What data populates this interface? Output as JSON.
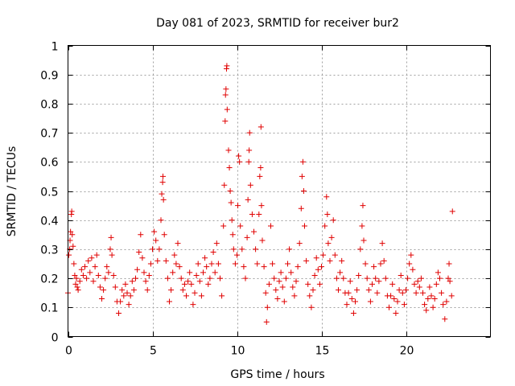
{
  "chart_data": {
    "type": "scatter",
    "title": "Day 081 of 2023, SRMTID for receiver bur2",
    "xlabel": "GPS time / hours",
    "ylabel": "SRMTID / TECUs",
    "xlim": [
      0,
      25
    ],
    "ylim": [
      0,
      1
    ],
    "x_ticks": [
      "0",
      "5",
      "10",
      "15",
      "20"
    ],
    "x_tick_values": [
      0,
      5,
      10,
      15,
      20
    ],
    "y_ticks": [
      "0",
      "0.1",
      "0.2",
      "0.3",
      "0.4",
      "0.5",
      "0.6",
      "0.7",
      "0.8",
      "0.9",
      "1"
    ],
    "y_tick_values": [
      0,
      0.1,
      0.2,
      0.3,
      0.4,
      0.5,
      0.6,
      0.7,
      0.8,
      0.9,
      1
    ],
    "grid": true,
    "marker": "+",
    "color": "#e00000",
    "series": [
      {
        "name": "SRMTID",
        "points": [
          [
            0.0,
            0.15
          ],
          [
            0.05,
            0.28
          ],
          [
            0.1,
            0.3
          ],
          [
            0.12,
            0.33
          ],
          [
            0.15,
            0.36
          ],
          [
            0.2,
            0.42
          ],
          [
            0.22,
            0.43
          ],
          [
            0.25,
            0.35
          ],
          [
            0.3,
            0.31
          ],
          [
            0.35,
            0.25
          ],
          [
            0.4,
            0.21
          ],
          [
            0.45,
            0.18
          ],
          [
            0.5,
            0.2
          ],
          [
            0.55,
            0.17
          ],
          [
            0.6,
            0.16
          ],
          [
            0.7,
            0.19
          ],
          [
            0.8,
            0.23
          ],
          [
            0.9,
            0.21
          ],
          [
            1.0,
            0.24
          ],
          [
            1.1,
            0.2
          ],
          [
            1.2,
            0.26
          ],
          [
            1.3,
            0.22
          ],
          [
            1.4,
            0.27
          ],
          [
            1.5,
            0.19
          ],
          [
            1.6,
            0.24
          ],
          [
            1.7,
            0.28
          ],
          [
            1.8,
            0.21
          ],
          [
            1.9,
            0.17
          ],
          [
            2.0,
            0.13
          ],
          [
            2.1,
            0.16
          ],
          [
            2.2,
            0.2
          ],
          [
            2.3,
            0.24
          ],
          [
            2.4,
            0.22
          ],
          [
            2.5,
            0.3
          ],
          [
            2.55,
            0.34
          ],
          [
            2.6,
            0.28
          ],
          [
            2.7,
            0.21
          ],
          [
            2.8,
            0.17
          ],
          [
            2.9,
            0.12
          ],
          [
            3.0,
            0.08
          ],
          [
            3.1,
            0.12
          ],
          [
            3.2,
            0.16
          ],
          [
            3.3,
            0.14
          ],
          [
            3.4,
            0.18
          ],
          [
            3.5,
            0.15
          ],
          [
            3.6,
            0.11
          ],
          [
            3.7,
            0.14
          ],
          [
            3.8,
            0.19
          ],
          [
            3.9,
            0.16
          ],
          [
            4.0,
            0.2
          ],
          [
            4.1,
            0.23
          ],
          [
            4.2,
            0.29
          ],
          [
            4.3,
            0.35
          ],
          [
            4.4,
            0.27
          ],
          [
            4.5,
            0.22
          ],
          [
            4.6,
            0.19
          ],
          [
            4.7,
            0.16
          ],
          [
            4.8,
            0.21
          ],
          [
            4.9,
            0.25
          ],
          [
            5.0,
            0.3
          ],
          [
            5.1,
            0.36
          ],
          [
            5.2,
            0.33
          ],
          [
            5.3,
            0.26
          ],
          [
            5.4,
            0.3
          ],
          [
            5.5,
            0.4
          ],
          [
            5.55,
            0.49
          ],
          [
            5.6,
            0.53
          ],
          [
            5.62,
            0.55
          ],
          [
            5.65,
            0.47
          ],
          [
            5.7,
            0.35
          ],
          [
            5.8,
            0.26
          ],
          [
            5.9,
            0.2
          ],
          [
            6.0,
            0.12
          ],
          [
            6.1,
            0.16
          ],
          [
            6.2,
            0.22
          ],
          [
            6.3,
            0.28
          ],
          [
            6.4,
            0.25
          ],
          [
            6.5,
            0.32
          ],
          [
            6.6,
            0.24
          ],
          [
            6.7,
            0.2
          ],
          [
            6.8,
            0.16
          ],
          [
            6.9,
            0.18
          ],
          [
            7.0,
            0.14
          ],
          [
            7.1,
            0.19
          ],
          [
            7.2,
            0.22
          ],
          [
            7.3,
            0.18
          ],
          [
            7.4,
            0.11
          ],
          [
            7.5,
            0.15
          ],
          [
            7.6,
            0.21
          ],
          [
            7.7,
            0.25
          ],
          [
            7.8,
            0.19
          ],
          [
            7.9,
            0.14
          ],
          [
            8.0,
            0.22
          ],
          [
            8.1,
            0.27
          ],
          [
            8.2,
            0.24
          ],
          [
            8.3,
            0.18
          ],
          [
            8.4,
            0.2
          ],
          [
            8.5,
            0.25
          ],
          [
            8.6,
            0.29
          ],
          [
            8.7,
            0.22
          ],
          [
            8.8,
            0.32
          ],
          [
            8.9,
            0.25
          ],
          [
            9.0,
            0.2
          ],
          [
            9.1,
            0.14
          ],
          [
            9.2,
            0.38
          ],
          [
            9.25,
            0.52
          ],
          [
            9.3,
            0.74
          ],
          [
            9.32,
            0.83
          ],
          [
            9.35,
            0.85
          ],
          [
            9.38,
            0.92
          ],
          [
            9.4,
            0.93
          ],
          [
            9.42,
            0.78
          ],
          [
            9.5,
            0.64
          ],
          [
            9.55,
            0.58
          ],
          [
            9.6,
            0.5
          ],
          [
            9.65,
            0.46
          ],
          [
            9.7,
            0.4
          ],
          [
            9.75,
            0.35
          ],
          [
            9.8,
            0.3
          ],
          [
            9.9,
            0.25
          ],
          [
            10.0,
            0.28
          ],
          [
            10.05,
            0.45
          ],
          [
            10.1,
            0.62
          ],
          [
            10.15,
            0.6
          ],
          [
            10.2,
            0.38
          ],
          [
            10.3,
            0.3
          ],
          [
            10.4,
            0.24
          ],
          [
            10.5,
            0.2
          ],
          [
            10.6,
            0.34
          ],
          [
            10.65,
            0.47
          ],
          [
            10.7,
            0.6
          ],
          [
            10.72,
            0.64
          ],
          [
            10.75,
            0.7
          ],
          [
            10.8,
            0.52
          ],
          [
            10.9,
            0.42
          ],
          [
            11.0,
            0.36
          ],
          [
            11.1,
            0.3
          ],
          [
            11.2,
            0.25
          ],
          [
            11.3,
            0.42
          ],
          [
            11.35,
            0.55
          ],
          [
            11.4,
            0.58
          ],
          [
            11.42,
            0.72
          ],
          [
            11.45,
            0.45
          ],
          [
            11.5,
            0.33
          ],
          [
            11.6,
            0.24
          ],
          [
            11.7,
            0.15
          ],
          [
            11.75,
            0.05
          ],
          [
            11.8,
            0.1
          ],
          [
            11.9,
            0.18
          ],
          [
            12.0,
            0.38
          ],
          [
            12.1,
            0.25
          ],
          [
            12.2,
            0.2
          ],
          [
            12.3,
            0.16
          ],
          [
            12.4,
            0.13
          ],
          [
            12.5,
            0.19
          ],
          [
            12.6,
            0.22
          ],
          [
            12.7,
            0.17
          ],
          [
            12.8,
            0.12
          ],
          [
            12.9,
            0.2
          ],
          [
            13.0,
            0.25
          ],
          [
            13.1,
            0.3
          ],
          [
            13.2,
            0.22
          ],
          [
            13.3,
            0.17
          ],
          [
            13.4,
            0.14
          ],
          [
            13.5,
            0.19
          ],
          [
            13.6,
            0.24
          ],
          [
            13.7,
            0.32
          ],
          [
            13.8,
            0.44
          ],
          [
            13.85,
            0.55
          ],
          [
            13.9,
            0.6
          ],
          [
            13.95,
            0.5
          ],
          [
            14.0,
            0.38
          ],
          [
            14.1,
            0.26
          ],
          [
            14.2,
            0.18
          ],
          [
            14.3,
            0.14
          ],
          [
            14.4,
            0.1
          ],
          [
            14.5,
            0.16
          ],
          [
            14.6,
            0.21
          ],
          [
            14.7,
            0.27
          ],
          [
            14.8,
            0.23
          ],
          [
            14.9,
            0.18
          ],
          [
            15.0,
            0.24
          ],
          [
            15.1,
            0.28
          ],
          [
            15.2,
            0.38
          ],
          [
            15.3,
            0.48
          ],
          [
            15.35,
            0.42
          ],
          [
            15.4,
            0.32
          ],
          [
            15.5,
            0.26
          ],
          [
            15.6,
            0.34
          ],
          [
            15.7,
            0.4
          ],
          [
            15.8,
            0.28
          ],
          [
            15.9,
            0.2
          ],
          [
            16.0,
            0.16
          ],
          [
            16.1,
            0.22
          ],
          [
            16.2,
            0.26
          ],
          [
            16.3,
            0.2
          ],
          [
            16.4,
            0.15
          ],
          [
            16.5,
            0.11
          ],
          [
            16.6,
            0.15
          ],
          [
            16.7,
            0.19
          ],
          [
            16.8,
            0.13
          ],
          [
            16.9,
            0.08
          ],
          [
            17.0,
            0.12
          ],
          [
            17.1,
            0.16
          ],
          [
            17.2,
            0.21
          ],
          [
            17.3,
            0.3
          ],
          [
            17.4,
            0.38
          ],
          [
            17.45,
            0.45
          ],
          [
            17.5,
            0.33
          ],
          [
            17.6,
            0.25
          ],
          [
            17.7,
            0.2
          ],
          [
            17.8,
            0.16
          ],
          [
            17.9,
            0.12
          ],
          [
            18.0,
            0.18
          ],
          [
            18.1,
            0.24
          ],
          [
            18.2,
            0.2
          ],
          [
            18.3,
            0.15
          ],
          [
            18.4,
            0.19
          ],
          [
            18.5,
            0.25
          ],
          [
            18.6,
            0.32
          ],
          [
            18.7,
            0.26
          ],
          [
            18.8,
            0.2
          ],
          [
            18.9,
            0.14
          ],
          [
            19.0,
            0.1
          ],
          [
            19.1,
            0.14
          ],
          [
            19.2,
            0.18
          ],
          [
            19.3,
            0.13
          ],
          [
            19.4,
            0.08
          ],
          [
            19.5,
            0.12
          ],
          [
            19.6,
            0.16
          ],
          [
            19.7,
            0.21
          ],
          [
            19.8,
            0.15
          ],
          [
            19.9,
            0.11
          ],
          [
            20.0,
            0.16
          ],
          [
            20.1,
            0.2
          ],
          [
            20.2,
            0.25
          ],
          [
            20.3,
            0.28
          ],
          [
            20.4,
            0.23
          ],
          [
            20.5,
            0.18
          ],
          [
            20.6,
            0.15
          ],
          [
            20.7,
            0.19
          ],
          [
            20.8,
            0.17
          ],
          [
            20.9,
            0.2
          ],
          [
            21.0,
            0.15
          ],
          [
            21.1,
            0.11
          ],
          [
            21.2,
            0.09
          ],
          [
            21.3,
            0.13
          ],
          [
            21.4,
            0.17
          ],
          [
            21.5,
            0.14
          ],
          [
            21.6,
            0.1
          ],
          [
            21.7,
            0.13
          ],
          [
            21.8,
            0.18
          ],
          [
            21.9,
            0.22
          ],
          [
            22.0,
            0.2
          ],
          [
            22.1,
            0.15
          ],
          [
            22.2,
            0.11
          ],
          [
            22.3,
            0.06
          ],
          [
            22.4,
            0.12
          ],
          [
            22.5,
            0.2
          ],
          [
            22.55,
            0.25
          ],
          [
            22.6,
            0.19
          ],
          [
            22.7,
            0.14
          ],
          [
            22.75,
            0.43
          ]
        ]
      }
    ]
  }
}
